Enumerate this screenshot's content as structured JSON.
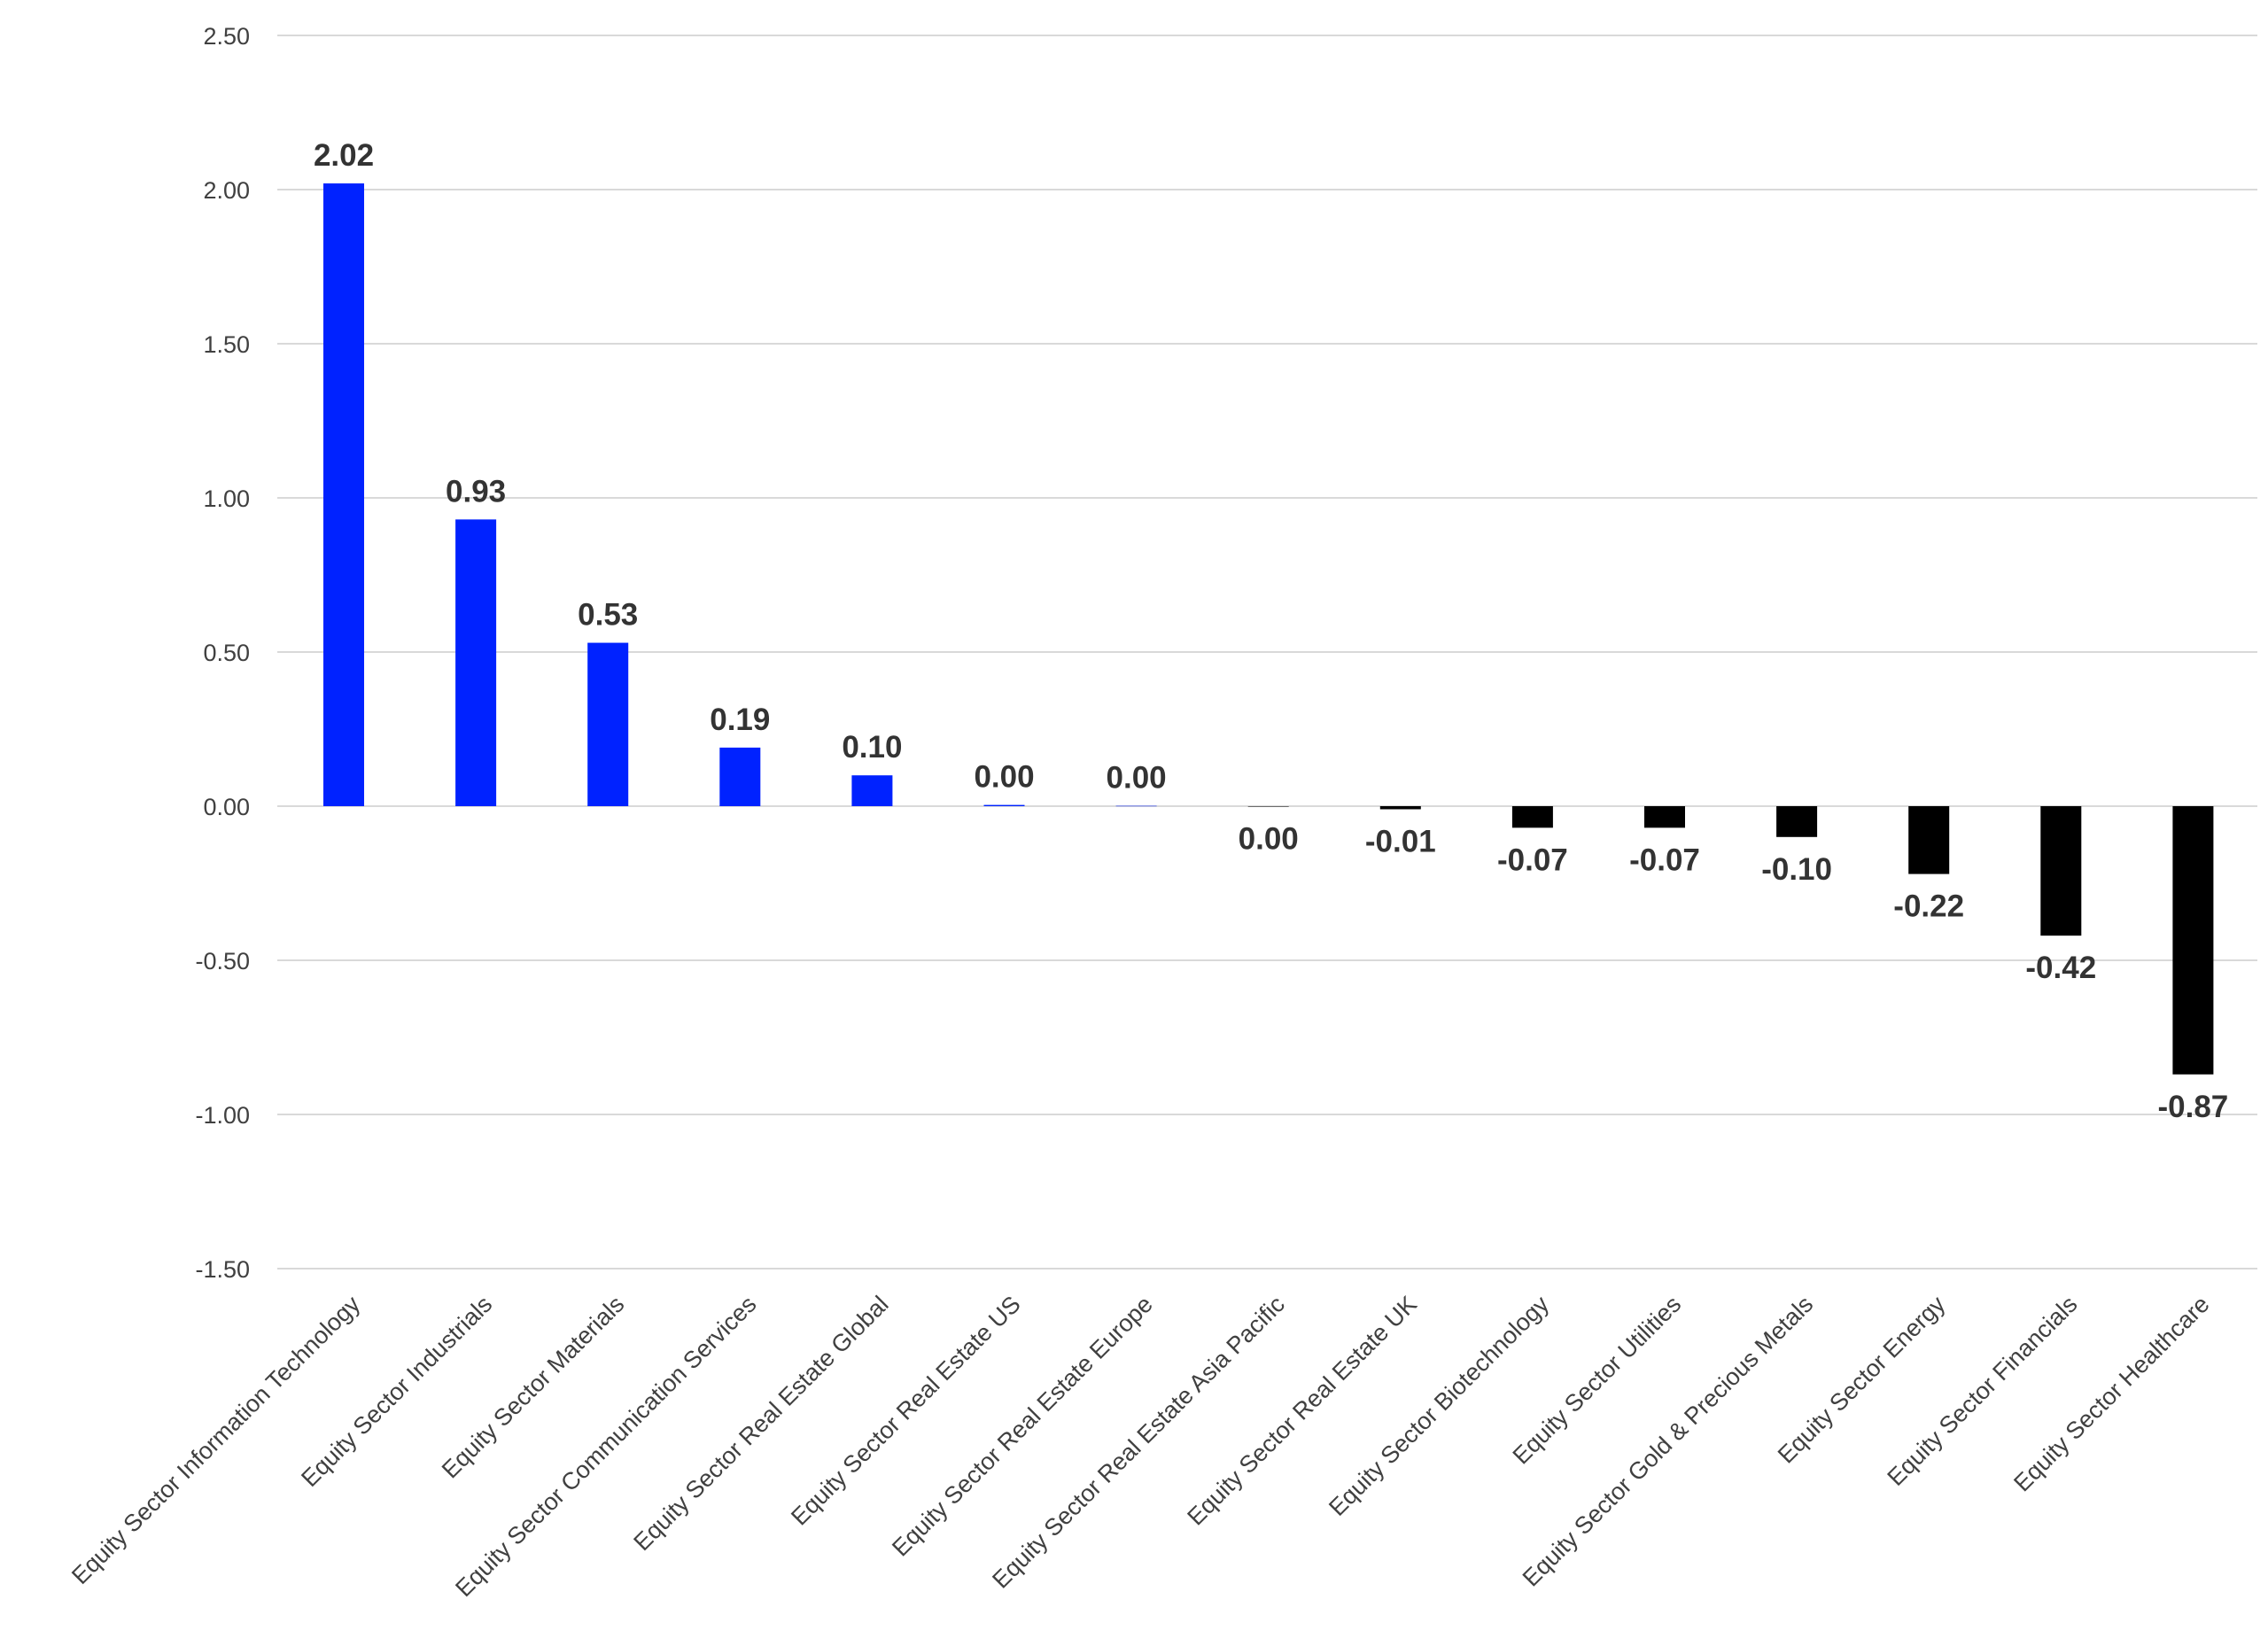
{
  "chart_data": {
    "type": "bar",
    "title": "",
    "xlabel": "",
    "ylabel": "",
    "ylim": [
      -1.5,
      2.5
    ],
    "yticks": [
      "2.50",
      "2.00",
      "1.50",
      "1.00",
      "0.50",
      "0.00",
      "-0.50",
      "-1.00",
      "-1.50"
    ],
    "ytick_values": [
      2.5,
      2.0,
      1.5,
      1.0,
      0.5,
      0.0,
      -0.5,
      -1.0,
      -1.5
    ],
    "grid": true,
    "legend": "none",
    "categories": [
      "Equity Sector Information Technology",
      "Equity Sector Industrials",
      "Equity Sector Materials",
      "Equity Sector Communication Services",
      "Equity Sector Real Estate Global",
      "Equity Sector Real Estate US",
      "Equity Sector Real Estate Europe",
      "Equity Sector Real Estate Asia Pacific",
      "Equity Sector Real Estate UK",
      "Equity Sector Biotechnology",
      "Equity Sector Utilities",
      "Equity Sector Gold & Precious Metals",
      "Equity Sector Energy",
      "Equity Sector Financials",
      "Equity Sector Healthcare"
    ],
    "values": [
      2.02,
      0.93,
      0.53,
      0.19,
      0.1,
      0.004,
      0.001,
      -0.001,
      -0.01,
      -0.07,
      -0.07,
      -0.1,
      -0.22,
      -0.42,
      -0.87
    ],
    "data_labels": [
      "2.02",
      "0.93",
      "0.53",
      "0.19",
      "0.10",
      "0.00",
      "0.00",
      "0.00",
      "-0.01",
      "-0.07",
      "-0.07",
      "-0.10",
      "-0.22",
      "-0.42",
      "-0.87"
    ],
    "colors": {
      "positive": "#0022ff",
      "negative": "#000000",
      "grid": "#d9d9d9",
      "tick_text": "#404040",
      "label_text": "#333333"
    }
  }
}
